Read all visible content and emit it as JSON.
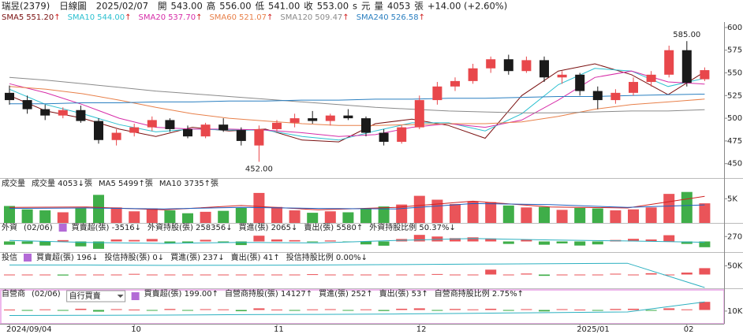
{
  "header": [
    {
      "text": "瑞昱(2379)",
      "color": "#000"
    },
    {
      "text": "日線圖",
      "color": "#000"
    },
    {
      "text": "2025/02/07",
      "color": "#000"
    },
    {
      "text": "開",
      "color": "#000"
    },
    {
      "text": "543.00",
      "color": "#c00000"
    },
    {
      "text": "高",
      "color": "#000"
    },
    {
      "text": "556.00",
      "color": "#c00000"
    },
    {
      "text": "低",
      "color": "#000"
    },
    {
      "text": "541.00",
      "color": "#c00000"
    },
    {
      "text": "收",
      "color": "#000"
    },
    {
      "text": "553.00",
      "color": "#c00000"
    },
    {
      "text": "s",
      "color": "#000"
    },
    {
      "text": "元",
      "color": "#000"
    },
    {
      "text": "量",
      "color": "#000"
    },
    {
      "text": "4053",
      "color": "#000"
    },
    {
      "text": "張",
      "color": "#000"
    },
    {
      "text": "+14.00 (+2.60%)",
      "color": "#000"
    }
  ],
  "chart_data": {
    "type": "candlestick",
    "up_color": "#e8474b",
    "down_color": "#1a1a1a",
    "ylim": [
      435,
      606
    ],
    "yticks": [
      450,
      475,
      500,
      525,
      550,
      575,
      600
    ],
    "grid": false,
    "high_label": "585.00",
    "low_label": "452.00",
    "xticks": [
      {
        "value": 0,
        "label": "2024/09/04"
      },
      {
        "value": 7,
        "label": "10"
      },
      {
        "value": 15,
        "label": "11"
      },
      {
        "value": 23,
        "label": "12"
      },
      {
        "value": 32,
        "label": "2025/01"
      },
      {
        "value": 38,
        "label": "02"
      }
    ],
    "candles": [
      [
        528,
        536,
        515,
        520
      ],
      [
        520,
        525,
        505,
        510
      ],
      [
        510,
        515,
        498,
        503
      ],
      [
        503,
        512,
        500,
        509
      ],
      [
        509,
        514,
        495,
        497
      ],
      [
        497,
        500,
        472,
        476
      ],
      [
        476,
        488,
        470,
        484
      ],
      [
        484,
        494,
        480,
        490
      ],
      [
        490,
        502,
        486,
        498
      ],
      [
        498,
        500,
        485,
        488
      ],
      [
        488,
        492,
        478,
        480
      ],
      [
        480,
        495,
        478,
        493
      ],
      [
        493,
        500,
        485,
        487
      ],
      [
        487,
        490,
        470,
        475
      ],
      [
        470,
        492,
        452,
        488
      ],
      [
        488,
        498,
        485,
        495
      ],
      [
        495,
        505,
        490,
        500
      ],
      [
        500,
        508,
        494,
        497
      ],
      [
        497,
        505,
        492,
        503
      ],
      [
        503,
        510,
        498,
        500
      ],
      [
        500,
        502,
        480,
        484
      ],
      [
        484,
        488,
        470,
        474
      ],
      [
        474,
        492,
        472,
        490
      ],
      [
        490,
        525,
        488,
        520
      ],
      [
        520,
        540,
        515,
        535
      ],
      [
        535,
        545,
        530,
        541
      ],
      [
        541,
        560,
        538,
        555
      ],
      [
        555,
        568,
        550,
        565
      ],
      [
        565,
        570,
        548,
        552
      ],
      [
        552,
        568,
        550,
        564
      ],
      [
        564,
        568,
        540,
        545
      ],
      [
        545,
        552,
        538,
        548
      ],
      [
        548,
        550,
        525,
        530
      ],
      [
        530,
        535,
        510,
        520
      ],
      [
        520,
        532,
        516,
        528
      ],
      [
        528,
        545,
        525,
        540
      ],
      [
        540,
        552,
        535,
        548
      ],
      [
        548,
        580,
        545,
        575
      ],
      [
        575,
        585,
        535,
        539
      ],
      [
        543,
        556,
        541,
        553
      ]
    ],
    "ma_series": [
      {
        "name": "SMA5",
        "label": "551.20",
        "trend": "↑",
        "color": "#7a1010",
        "values": [
          525,
          508,
          500,
          488,
          480,
          490,
          486,
          488,
          476,
          474,
          494,
          499,
          492,
          478,
          525,
          552,
          560,
          548,
          526,
          551.2
        ]
      },
      {
        "name": "SMA10",
        "label": "544.00",
        "trend": "↑",
        "color": "#2cc0d0",
        "values": [
          532,
          515,
          505,
          493,
          485,
          488,
          487,
          487,
          480,
          476,
          486,
          495,
          495,
          486,
          505,
          537,
          555,
          552,
          535,
          544
        ]
      },
      {
        "name": "SMA20",
        "label": "537.70",
        "trend": "↑",
        "color": "#d62ca8",
        "values": [
          538,
          528,
          515,
          500,
          490,
          488,
          488,
          487,
          484,
          480,
          482,
          490,
          494,
          490,
          498,
          520,
          545,
          552,
          540,
          537.7
        ]
      },
      {
        "name": "SMA60",
        "label": "521.07",
        "trend": "↑",
        "color": "#e8804a",
        "values": [
          535,
          532,
          527,
          520,
          512,
          505,
          500,
          497,
          494,
          492,
          492,
          493,
          494,
          494,
          496,
          502,
          510,
          515,
          518,
          521.07
        ]
      },
      {
        "name": "SMA120",
        "label": "509.47",
        "trend": "↑",
        "color": "#8a8a8a",
        "values": [
          545,
          542,
          538,
          534,
          530,
          527,
          524,
          521,
          518,
          515,
          512,
          510,
          508,
          507,
          506,
          506,
          507,
          508,
          508,
          509.47
        ]
      },
      {
        "name": "SMA240",
        "label": "526.58",
        "trend": "↑",
        "color": "#2a7fc0",
        "values": [
          516,
          516,
          517,
          517,
          518,
          518,
          519,
          519,
          520,
          520,
          521,
          521,
          522,
          522,
          523,
          524,
          524,
          525,
          526,
          526.58
        ]
      }
    ],
    "volume": {
      "ylim": [
        0,
        7000
      ],
      "yticks": [
        {
          "value": 5000,
          "label": "5K"
        }
      ],
      "up_color": "#ea5459",
      "down_color": "#3fae49",
      "legend": [
        {
          "text": "成交量",
          "color": "#555"
        },
        {
          "text": "成交量 4053↓張",
          "color": "#222"
        },
        {
          "text": "MA5 5499↑張",
          "color": "#d02020"
        },
        {
          "text": "MA10 3735↑張",
          "color": "#2060c0"
        }
      ],
      "values": [
        3500,
        2800,
        2600,
        2200,
        3000,
        5800,
        3200,
        2400,
        3000,
        2600,
        2000,
        2300,
        2500,
        3100,
        6200,
        3300,
        2600,
        2100,
        2400,
        2200,
        3000,
        3400,
        3800,
        5600,
        4800,
        3900,
        4500,
        4300,
        3600,
        3200,
        3300,
        2700,
        3100,
        3000,
        2600,
        2800,
        3200,
        6000,
        6400,
        4053
      ],
      "lines": [
        {
          "color": "#d02020",
          "values": [
            3200,
            3300,
            2700,
            3600,
            2700,
            3200,
            4500,
            3300,
            3100,
            5499
          ]
        },
        {
          "color": "#2060c0",
          "values": [
            3000,
            3100,
            2900,
            3200,
            3000,
            2900,
            4000,
            3800,
            3200,
            3735
          ]
        }
      ]
    },
    "foreign": {
      "ylim": [
        -6000,
        6000
      ],
      "y2lim": [
        240000,
        280000
      ],
      "y2ticks": [
        {
          "value": 270000,
          "label": "270K"
        }
      ],
      "line_color": "#2cb0c0",
      "legend": [
        {
          "text": "外資",
          "color": "#222"
        },
        {
          "text": "(02/06)",
          "color": "#222"
        },
        {
          "text": "買賣超(張) -3516↓",
          "color": "#d02020"
        },
        {
          "text": "外資持股(張) 258356↓",
          "color": "#2aa0b0"
        },
        {
          "text": "買進(張) 2065↓",
          "color": "#e08020"
        },
        {
          "text": "賣出(張) 5580↑",
          "color": "#2060c0"
        },
        {
          "text": "外資持股比例 50.37%↓",
          "color": "#3a9a3a"
        }
      ],
      "net": [
        -2000,
        -1500,
        -2500,
        800,
        -3000,
        -4500,
        1200,
        900,
        1500,
        -1200,
        -800,
        1000,
        -600,
        -2200,
        3500,
        1200,
        800,
        -500,
        600,
        -400,
        -1800,
        -2600,
        1500,
        4000,
        3000,
        2000,
        2500,
        1800,
        -1500,
        1200,
        -2000,
        -1200,
        -2500,
        -1800,
        900,
        1600,
        1200,
        3800,
        -1500,
        -3516
      ],
      "holding": [
        262000,
        258000,
        256000,
        258000,
        257000,
        262000,
        266000,
        263000,
        261000,
        258356
      ]
    },
    "trust": {
      "ylim": [
        -400,
        400
      ],
      "y2lim": [
        0,
        60000
      ],
      "y2ticks": [
        {
          "value": 50000,
          "label": "50K"
        }
      ],
      "line_color": "#2cb0c0",
      "legend": [
        {
          "text": "投信",
          "color": "#222"
        },
        {
          "text": "買賣超(張) 196↓",
          "color": "#d02020"
        },
        {
          "text": "投信持股(張) 0↓",
          "color": "#2aa0b0"
        },
        {
          "text": "買進(張) 237↓",
          "color": "#e08020"
        },
        {
          "text": "賣出(張) 41↑",
          "color": "#2060c0"
        },
        {
          "text": "投信持股比例 0.00%↓",
          "color": "#3a9a3a"
        }
      ],
      "net": [
        0,
        0,
        0,
        -30,
        0,
        0,
        0,
        20,
        0,
        0,
        0,
        0,
        0,
        0,
        0,
        0,
        0,
        10,
        0,
        0,
        0,
        0,
        0,
        0,
        15,
        0,
        0,
        150,
        0,
        30,
        -40,
        0,
        0,
        0,
        25,
        0,
        40,
        0,
        60,
        196
      ],
      "holding": [
        52000,
        52000,
        51000,
        51500,
        52000,
        53000,
        54000,
        55000,
        56000,
        0
      ]
    },
    "dealer": {
      "ylim": [
        -300,
        300
      ],
      "y2lim": [
        5000,
        16000
      ],
      "y2ticks": [
        {
          "value": 10000,
          "label": "10K"
        }
      ],
      "line_color": "#2cb0c0",
      "dropdown": "自行買賣",
      "legend": [
        {
          "text": "自營商",
          "color": "#222"
        },
        {
          "text": "(02/06)",
          "color": "#222"
        },
        {
          "text": "買賣超(張) 199.00↑",
          "color": "#d02020"
        },
        {
          "text": "自營商持股(張) 14127↑",
          "color": "#2aa0b0"
        },
        {
          "text": "買進(張) 252↑",
          "color": "#e08020"
        },
        {
          "text": "賣出(張) 53↑",
          "color": "#2060c0"
        },
        {
          "text": "自營商持股比例 2.75%↑",
          "color": "#3a9a3a"
        }
      ],
      "net": [
        10,
        -20,
        15,
        -10,
        30,
        -40,
        20,
        10,
        -15,
        25,
        -10,
        20,
        15,
        -30,
        40,
        10,
        -20,
        15,
        20,
        -10,
        15,
        -25,
        30,
        40,
        -20,
        25,
        15,
        30,
        -20,
        20,
        -35,
        20,
        10,
        -15,
        25,
        30,
        -20,
        40,
        15,
        199
      ],
      "holding": [
        8000,
        8100,
        8200,
        8400,
        8500,
        8700,
        9000,
        9300,
        9600,
        14127
      ]
    }
  }
}
